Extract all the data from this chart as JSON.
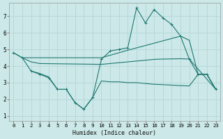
{
  "xlabel": "Humidex (Indice chaleur)",
  "bg_color": "#cce8e8",
  "grid_color": "#b8d8d8",
  "line_color": "#1e7870",
  "xlim": [
    -0.5,
    23.5
  ],
  "ylim": [
    0.7,
    7.8
  ],
  "yticks": [
    1,
    2,
    3,
    4,
    5,
    6,
    7
  ],
  "xticks": [
    0,
    1,
    2,
    3,
    4,
    5,
    6,
    7,
    8,
    9,
    10,
    11,
    12,
    13,
    14,
    15,
    16,
    17,
    18,
    19,
    20,
    21,
    22,
    23
  ],
  "line1_x": [
    0,
    1,
    2,
    3,
    4,
    5,
    6,
    7,
    8,
    9,
    10,
    11,
    12,
    13,
    14,
    15,
    16,
    17,
    18,
    19,
    20,
    21,
    22,
    23
  ],
  "line1_y": [
    4.8,
    4.5,
    3.7,
    3.5,
    3.3,
    2.6,
    2.6,
    1.8,
    1.4,
    2.1,
    4.4,
    4.9,
    5.0,
    5.1,
    7.5,
    6.6,
    7.4,
    6.9,
    6.5,
    5.8,
    4.4,
    3.5,
    3.5,
    2.6
  ],
  "line2_x": [
    0,
    1,
    10,
    11,
    12,
    13,
    19,
    20,
    21,
    22,
    23
  ],
  "line2_y": [
    4.8,
    4.5,
    4.5,
    4.65,
    4.8,
    4.95,
    5.8,
    5.55,
    3.5,
    3.5,
    2.6
  ],
  "line3_x": [
    1,
    2,
    3,
    10,
    11,
    12,
    13,
    14,
    15,
    16,
    17,
    18,
    19,
    20,
    23
  ],
  "line3_y": [
    4.5,
    4.25,
    4.15,
    4.1,
    4.15,
    4.2,
    4.25,
    4.3,
    4.35,
    4.4,
    4.42,
    4.43,
    4.44,
    4.42,
    2.6
  ],
  "line4_x": [
    2,
    3,
    4,
    5,
    6,
    7,
    8,
    9,
    10,
    11,
    12,
    13,
    14,
    15,
    16,
    17,
    18,
    19,
    20,
    21,
    22,
    23
  ],
  "line4_y": [
    3.7,
    3.55,
    3.35,
    2.6,
    2.6,
    1.8,
    1.4,
    2.1,
    3.1,
    3.05,
    3.05,
    3.0,
    3.0,
    2.95,
    2.9,
    2.88,
    2.85,
    2.82,
    2.8,
    3.5,
    3.5,
    2.6
  ]
}
